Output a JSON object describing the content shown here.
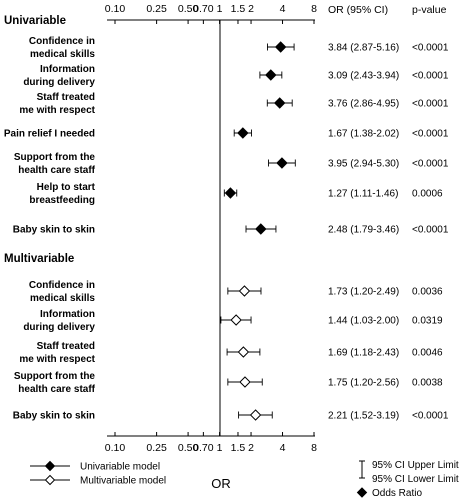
{
  "chart_data": {
    "type": "forest",
    "axis_label": "OR",
    "x_scale": "log",
    "xlim": [
      0.1,
      8
    ],
    "ticks": [
      "0.10",
      "0.25",
      "0.50",
      "0.70",
      "1",
      "1.5",
      "2",
      "4",
      "8"
    ],
    "tick_values": [
      0.1,
      0.25,
      0.5,
      0.7,
      1,
      1.5,
      2,
      4,
      8
    ],
    "reference_line": 1,
    "header_or": "OR (95% CI)",
    "header_p": "p-value",
    "sections": [
      {
        "title": "Univariable",
        "marker": "filled-diamond",
        "rows": [
          {
            "label": [
              "Confidence in",
              "medical skills"
            ],
            "or": 3.84,
            "lo": 2.87,
            "hi": 5.16,
            "or_text": "3.84 (2.87-5.16)",
            "p": "<0.0001"
          },
          {
            "label": [
              "Information",
              "during delivery"
            ],
            "or": 3.09,
            "lo": 2.43,
            "hi": 3.94,
            "or_text": "3.09 (2.43-3.94)",
            "p": "<0.0001"
          },
          {
            "label": [
              "Staff treated",
              "me with respect"
            ],
            "or": 3.76,
            "lo": 2.86,
            "hi": 4.95,
            "or_text": "3.76 (2.86-4.95)",
            "p": "<0.0001"
          },
          {
            "label": [
              "Pain relief I needed"
            ],
            "or": 1.67,
            "lo": 1.38,
            "hi": 2.02,
            "or_text": "1.67 (1.38-2.02)",
            "p": "<0.0001"
          },
          {
            "label": [
              "Support from the",
              "health care staff"
            ],
            "or": 3.95,
            "lo": 2.94,
            "hi": 5.3,
            "or_text": "3.95 (2.94-5.30)",
            "p": "<0.0001"
          },
          {
            "label": [
              "Help to start",
              "breastfeeding"
            ],
            "or": 1.27,
            "lo": 1.11,
            "hi": 1.46,
            "or_text": "1.27 (1.11-1.46)",
            "p": "0.0006"
          },
          {
            "label": [
              "Baby skin to skin"
            ],
            "or": 2.48,
            "lo": 1.79,
            "hi": 3.46,
            "or_text": "2.48 (1.79-3.46)",
            "p": "<0.0001"
          }
        ]
      },
      {
        "title": "Multivariable",
        "marker": "open-diamond",
        "rows": [
          {
            "label": [
              "Confidence in",
              "medical skills"
            ],
            "or": 1.73,
            "lo": 1.2,
            "hi": 2.49,
            "or_text": "1.73 (1.20-2.49)",
            "p": "0.0036"
          },
          {
            "label": [
              "Information",
              "during delivery"
            ],
            "or": 1.44,
            "lo": 1.03,
            "hi": 2.0,
            "or_text": "1.44 (1.03-2.00)",
            "p": "0.0319"
          },
          {
            "label": [
              "Staff treated",
              "me with respect"
            ],
            "or": 1.69,
            "lo": 1.18,
            "hi": 2.43,
            "or_text": "1.69 (1.18-2.43)",
            "p": "0.0046"
          },
          {
            "label": [
              "Support from the",
              "health care staff"
            ],
            "or": 1.75,
            "lo": 1.2,
            "hi": 2.56,
            "or_text": "1.75 (1.20-2.56)",
            "p": "0.0038"
          },
          {
            "label": [
              "Baby skin to skin"
            ],
            "or": 2.21,
            "lo": 1.52,
            "hi": 3.19,
            "or_text": "2.21 (1.52-3.19)",
            "p": "<0.0001"
          }
        ]
      }
    ],
    "legend": {
      "series": [
        {
          "name": "Univariable model",
          "marker": "filled-diamond"
        },
        {
          "name": "Multivariable model",
          "marker": "open-diamond"
        }
      ],
      "key": [
        "95% CI Upper Limit",
        "95% CI Lower Limit",
        "Odds Ratio"
      ]
    }
  }
}
